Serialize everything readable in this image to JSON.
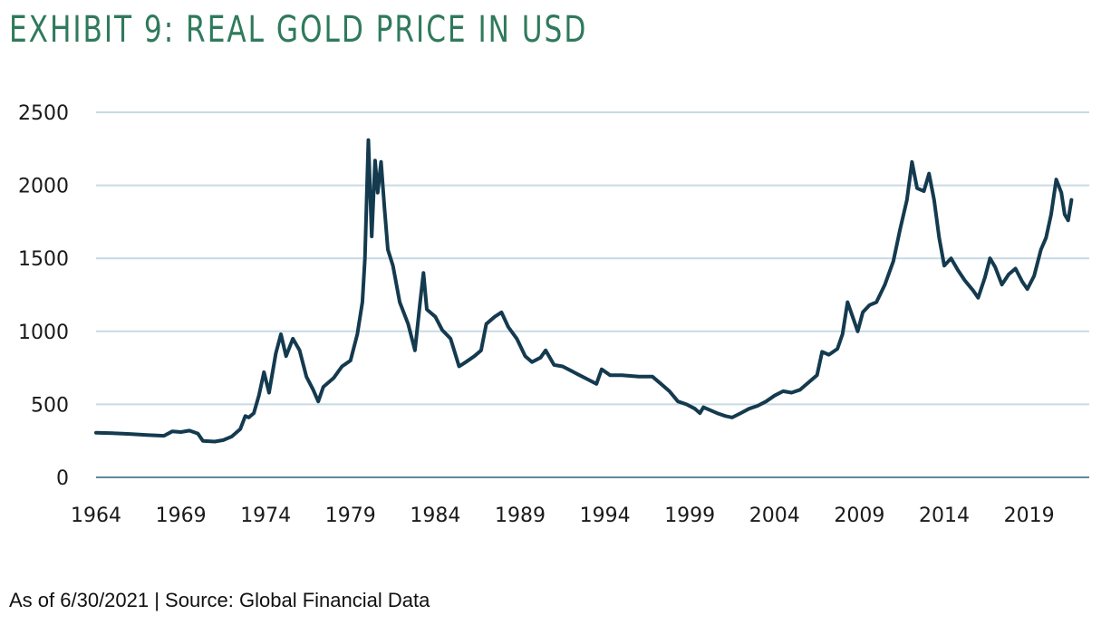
{
  "title": "EXHIBIT 9: REAL GOLD PRICE IN USD",
  "footnote": "As of 6/30/2021 | Source: Global Financial Data",
  "colors": {
    "title": "#2f7a5c",
    "line": "#143a4f",
    "grid": "#c7dae4"
  },
  "chart_data": {
    "type": "line",
    "title": "EXHIBIT 9: REAL GOLD PRICE IN USD",
    "xlabel": "",
    "ylabel": "",
    "xlim": [
      1964,
      2021.5
    ],
    "ylim": [
      0,
      2500
    ],
    "grid": true,
    "legend": "none",
    "x_ticks": [
      "1964",
      "1969",
      "1974",
      "1979",
      "1984",
      "1989",
      "1994",
      "1999",
      "2004",
      "2009",
      "2014",
      "2019"
    ],
    "y_ticks": [
      "0",
      "500",
      "1000",
      "1500",
      "2000",
      "2500"
    ],
    "series": [
      {
        "points": [
          [
            1964,
            305
          ],
          [
            1965,
            302
          ],
          [
            1966,
            297
          ],
          [
            1967,
            290
          ],
          [
            1968,
            285
          ],
          [
            1968.5,
            315
          ],
          [
            1969,
            310
          ],
          [
            1969.5,
            320
          ],
          [
            1970,
            300
          ],
          [
            1970.3,
            250
          ],
          [
            1971,
            245
          ],
          [
            1971.5,
            255
          ],
          [
            1972,
            280
          ],
          [
            1972.5,
            330
          ],
          [
            1972.8,
            420
          ],
          [
            1973,
            410
          ],
          [
            1973.3,
            440
          ],
          [
            1973.6,
            560
          ],
          [
            1973.9,
            720
          ],
          [
            1974.2,
            580
          ],
          [
            1974.6,
            850
          ],
          [
            1974.9,
            980
          ],
          [
            1975.2,
            830
          ],
          [
            1975.6,
            950
          ],
          [
            1976,
            870
          ],
          [
            1976.4,
            690
          ],
          [
            1976.8,
            600
          ],
          [
            1977.1,
            520
          ],
          [
            1977.4,
            620
          ],
          [
            1978,
            680
          ],
          [
            1978.5,
            760
          ],
          [
            1979,
            800
          ],
          [
            1979.4,
            980
          ],
          [
            1979.7,
            1200
          ],
          [
            1979.85,
            1500
          ],
          [
            1980.05,
            2310
          ],
          [
            1980.25,
            1650
          ],
          [
            1980.45,
            2170
          ],
          [
            1980.6,
            1950
          ],
          [
            1980.8,
            2160
          ],
          [
            1981,
            1850
          ],
          [
            1981.2,
            1560
          ],
          [
            1981.5,
            1450
          ],
          [
            1981.9,
            1200
          ],
          [
            1982.4,
            1050
          ],
          [
            1982.8,
            870
          ],
          [
            1983.1,
            1200
          ],
          [
            1983.3,
            1400
          ],
          [
            1983.5,
            1150
          ],
          [
            1984,
            1100
          ],
          [
            1984.4,
            1010
          ],
          [
            1984.9,
            950
          ],
          [
            1985.4,
            760
          ],
          [
            1985.8,
            790
          ],
          [
            1986.3,
            830
          ],
          [
            1986.7,
            870
          ],
          [
            1987,
            1050
          ],
          [
            1987.5,
            1100
          ],
          [
            1987.9,
            1130
          ],
          [
            1988.3,
            1030
          ],
          [
            1988.8,
            950
          ],
          [
            1989.3,
            830
          ],
          [
            1989.7,
            790
          ],
          [
            1990.2,
            820
          ],
          [
            1990.5,
            870
          ],
          [
            1991,
            770
          ],
          [
            1991.5,
            760
          ],
          [
            1992,
            730
          ],
          [
            1992.5,
            700
          ],
          [
            1993,
            670
          ],
          [
            1993.5,
            640
          ],
          [
            1993.8,
            740
          ],
          [
            1994.3,
            700
          ],
          [
            1995,
            700
          ],
          [
            1995.5,
            695
          ],
          [
            1996,
            690
          ],
          [
            1996.8,
            690
          ],
          [
            1997.3,
            640
          ],
          [
            1997.8,
            590
          ],
          [
            1998.3,
            520
          ],
          [
            1998.8,
            500
          ],
          [
            1999.3,
            470
          ],
          [
            1999.6,
            440
          ],
          [
            1999.8,
            480
          ],
          [
            2000.2,
            460
          ],
          [
            2000.6,
            440
          ],
          [
            2001.1,
            420
          ],
          [
            2001.5,
            410
          ],
          [
            2002,
            440
          ],
          [
            2002.5,
            470
          ],
          [
            2003,
            490
          ],
          [
            2003.5,
            520
          ],
          [
            2004,
            560
          ],
          [
            2004.5,
            590
          ],
          [
            2005,
            580
          ],
          [
            2005.5,
            600
          ],
          [
            2006,
            650
          ],
          [
            2006.5,
            700
          ],
          [
            2006.8,
            860
          ],
          [
            2007.2,
            840
          ],
          [
            2007.7,
            880
          ],
          [
            2008,
            980
          ],
          [
            2008.3,
            1200
          ],
          [
            2008.6,
            1100
          ],
          [
            2008.9,
            1000
          ],
          [
            2009.2,
            1130
          ],
          [
            2009.6,
            1180
          ],
          [
            2010,
            1200
          ],
          [
            2010.5,
            1320
          ],
          [
            2011,
            1480
          ],
          [
            2011.4,
            1700
          ],
          [
            2011.8,
            1900
          ],
          [
            2012.1,
            2160
          ],
          [
            2012.4,
            1980
          ],
          [
            2012.8,
            1960
          ],
          [
            2013.1,
            2080
          ],
          [
            2013.4,
            1900
          ],
          [
            2013.7,
            1640
          ],
          [
            2014,
            1450
          ],
          [
            2014.4,
            1500
          ],
          [
            2014.8,
            1420
          ],
          [
            2015.2,
            1350
          ],
          [
            2015.7,
            1280
          ],
          [
            2016,
            1230
          ],
          [
            2016.4,
            1370
          ],
          [
            2016.7,
            1500
          ],
          [
            2017,
            1440
          ],
          [
            2017.4,
            1320
          ],
          [
            2017.8,
            1390
          ],
          [
            2018.2,
            1430
          ],
          [
            2018.6,
            1340
          ],
          [
            2018.9,
            1290
          ],
          [
            2019.3,
            1380
          ],
          [
            2019.7,
            1560
          ],
          [
            2020,
            1640
          ],
          [
            2020.3,
            1800
          ],
          [
            2020.6,
            2040
          ],
          [
            2020.9,
            1950
          ],
          [
            2021.1,
            1800
          ],
          [
            2021.3,
            1760
          ],
          [
            2021.5,
            1900
          ]
        ]
      }
    ]
  }
}
